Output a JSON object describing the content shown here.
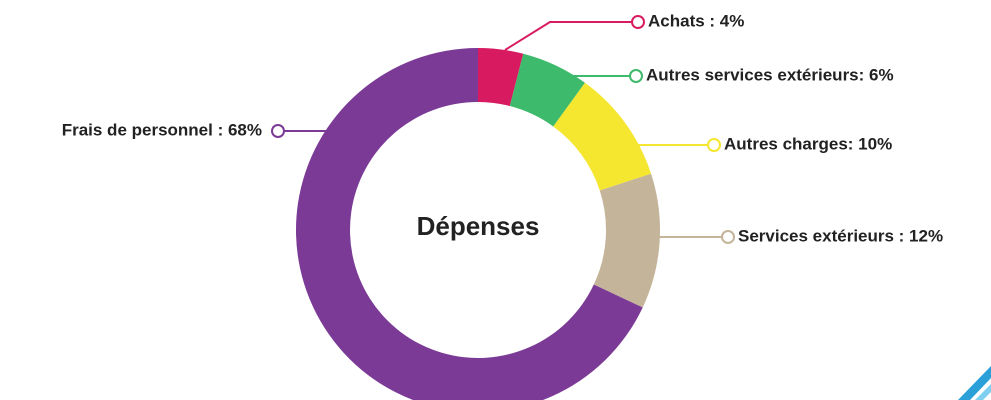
{
  "chart_data": {
    "type": "donut",
    "center_label": "Dépenses",
    "values": [
      4,
      6,
      10,
      12,
      68
    ],
    "value_labels": [
      "Achats : 4%",
      "Autres services extérieurs: 6%",
      "Autres charges: 10%",
      "Services extérieurs : 12%",
      "Frais de personnel : 68%"
    ],
    "colors": [
      "#d81b60",
      "#3dba6b",
      "#f5e62f",
      "#c4b49a",
      "#7b3a96"
    ]
  }
}
